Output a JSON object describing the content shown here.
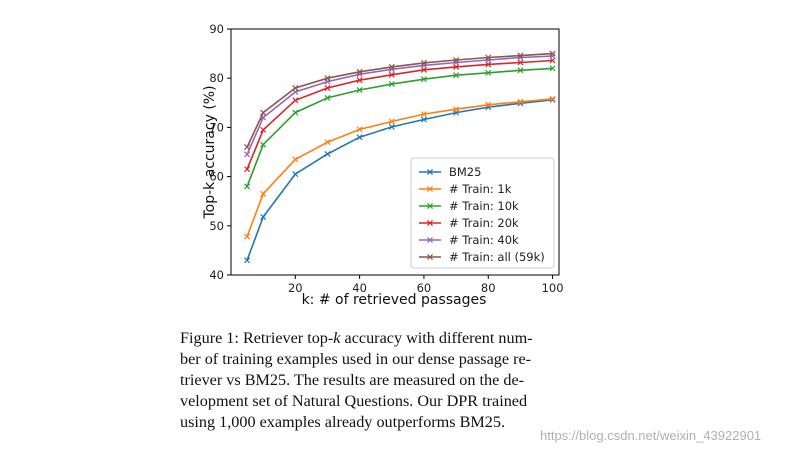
{
  "chart_data": {
    "type": "line",
    "xlabel": "k: # of retrieved passages",
    "ylabel": "Top-k accuracy (%)",
    "xlim": [
      0,
      102
    ],
    "ylim": [
      40,
      90
    ],
    "xticks": [
      20,
      40,
      60,
      80,
      100
    ],
    "yticks": [
      40,
      50,
      60,
      70,
      80,
      90
    ],
    "grid": false,
    "legend_position": "lower-right",
    "x": [
      5,
      10,
      20,
      30,
      40,
      50,
      60,
      70,
      80,
      90,
      100
    ],
    "series": [
      {
        "name": "BM25",
        "color": "#1f77b4",
        "values": [
          43.0,
          51.8,
          60.5,
          64.6,
          68.0,
          70.1,
          71.6,
          73.0,
          74.1,
          74.9,
          75.6
        ]
      },
      {
        "name": "# Train: 1k",
        "color": "#ff7f0e",
        "values": [
          47.8,
          56.5,
          63.5,
          67.0,
          69.6,
          71.2,
          72.7,
          73.7,
          74.6,
          75.2,
          75.8
        ]
      },
      {
        "name": "# Train: 10k",
        "color": "#2ca02c",
        "values": [
          58.0,
          66.5,
          73.0,
          76.0,
          77.6,
          78.8,
          79.8,
          80.6,
          81.1,
          81.6,
          82.0
        ]
      },
      {
        "name": "# Train: 20k",
        "color": "#d62728",
        "values": [
          61.5,
          69.5,
          75.5,
          78.0,
          79.6,
          80.7,
          81.7,
          82.3,
          82.8,
          83.2,
          83.6
        ]
      },
      {
        "name": "# Train: 40k",
        "color": "#9467bd",
        "values": [
          64.5,
          72.0,
          77.2,
          79.3,
          80.8,
          81.8,
          82.6,
          83.2,
          83.7,
          84.2,
          84.5
        ]
      },
      {
        "name": "# Train: all (59k)",
        "color": "#8c564b",
        "values": [
          66.0,
          73.0,
          78.0,
          80.0,
          81.3,
          82.3,
          83.1,
          83.7,
          84.2,
          84.6,
          85.0
        ]
      }
    ]
  },
  "caption": {
    "line1_pre": "Figure 1: Retriever top-",
    "line1_k": "k",
    "line1_post": " accuracy with different num-",
    "line2": "ber of training examples used in our dense passage re-",
    "line3": "triever vs BM25.  The results are measured on the de-",
    "line4": "velopment set of Natural Questions.  Our DPR trained",
    "line5": "using 1,000 examples already outperforms BM25."
  },
  "watermark": "https://blog.csdn.net/weixin_43922901"
}
